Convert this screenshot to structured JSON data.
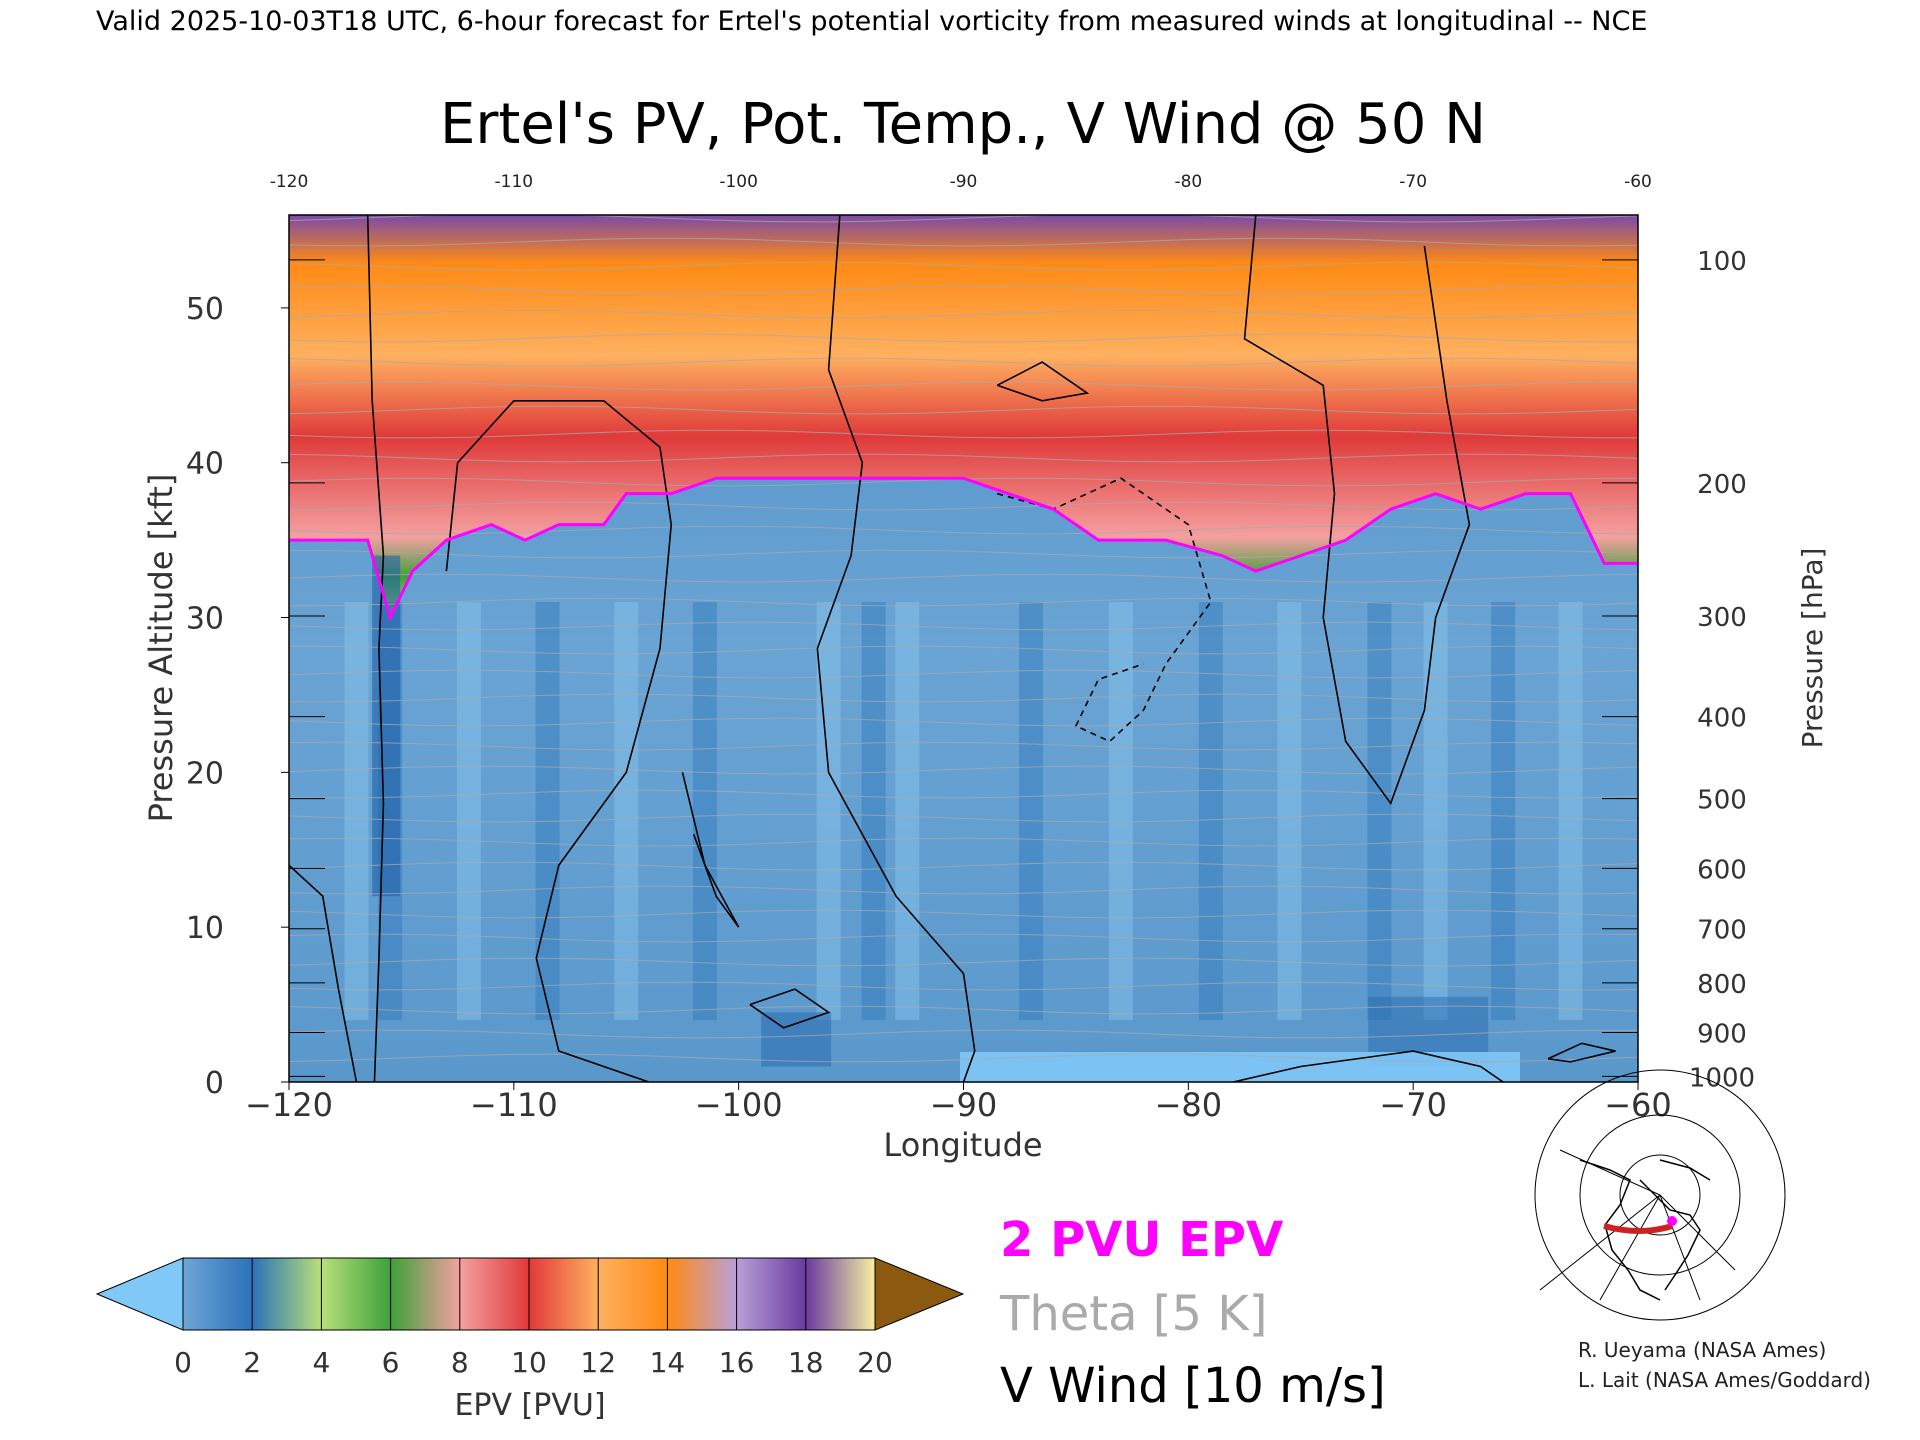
{
  "header": {
    "valid_line": "Valid 2025-10-03T18 UTC, 6-hour forecast for Ertel's potential vorticity from measured winds at longitudinal -- NCE"
  },
  "chart_data": {
    "type": "heatmap",
    "title": "Ertel's PV, Pot. Temp., V Wind @ 50 N",
    "xlabel": "Longitude",
    "ylabel_left": "Pressure Altitude [kft]",
    "ylabel_right": "Pressure [hPa]",
    "xlim": [
      -120,
      -60
    ],
    "ylim": [
      0,
      56
    ],
    "x_ticks": [
      -120,
      -110,
      -100,
      -90,
      -80,
      -70,
      -60
    ],
    "x_tick_labels": [
      "−120",
      "−110",
      "−100",
      "−90",
      "−80",
      "−70",
      "−60"
    ],
    "top_ticks": [
      -120,
      -110,
      -100,
      -90,
      -80,
      -70,
      -60
    ],
    "top_tick_labels": [
      "-120",
      "-110",
      "-100",
      "-90",
      "-80",
      "-70",
      "-60"
    ],
    "y_ticks": [
      0,
      10,
      20,
      30,
      40,
      50
    ],
    "pressure_ticks": [
      {
        "hpa": 100,
        "kft": 53.1
      },
      {
        "hpa": 200,
        "kft": 38.7
      },
      {
        "hpa": 300,
        "kft": 30.1
      },
      {
        "hpa": 400,
        "kft": 23.6
      },
      {
        "hpa": 500,
        "kft": 18.3
      },
      {
        "hpa": 600,
        "kft": 13.8
      },
      {
        "hpa": 700,
        "kft": 9.9
      },
      {
        "hpa": 800,
        "kft": 6.4
      },
      {
        "hpa": 900,
        "kft": 3.2
      },
      {
        "hpa": 1000,
        "kft": 0.36
      }
    ],
    "dynamic_tropopause": {
      "label": "2 PVU EPV",
      "color": "#ff00ff",
      "lon": [
        -120,
        -116.5,
        -115.5,
        -114.5,
        -113,
        -111,
        -109.5,
        -108,
        -106,
        -105,
        -103,
        -101,
        -99,
        -96,
        -93,
        -90,
        -88,
        -86,
        -84,
        -81,
        -78.5,
        -77,
        -75,
        -73,
        -71,
        -69,
        -67,
        -65,
        -63,
        -61.5,
        -60
      ],
      "kft": [
        35,
        35,
        30,
        33,
        35,
        36,
        35,
        36,
        36,
        38,
        38,
        39,
        39,
        39,
        39,
        39,
        38,
        37,
        35,
        35,
        34,
        33,
        34,
        35,
        37,
        38,
        37,
        38,
        38,
        33.5,
        33.5
      ]
    },
    "epv_profile": {
      "description_free": true,
      "lon": [
        -120,
        -110,
        -100,
        -90,
        -80,
        -70,
        -60
      ],
      "trop_kft": [
        35,
        36,
        39,
        39,
        35,
        38,
        33.5
      ]
    },
    "theta": {
      "label": "Theta",
      "units": "[5 K]",
      "color": "#aaaaaa"
    },
    "v_wind": {
      "label": "V Wind",
      "units": "[10 m/s]",
      "color": "#000000"
    },
    "colorbar": {
      "label": "EPV [PVU]",
      "ticks": [
        "0",
        "2",
        "4",
        "6",
        "8",
        "10",
        "12",
        "14",
        "16",
        "18",
        "20"
      ],
      "colors": [
        "#6ea6d6",
        "#2a72b8",
        "#b8e07a",
        "#3ea03a",
        "#f4a0a0",
        "#e03a3a",
        "#ffb060",
        "#ff8a14",
        "#b8a0d8",
        "#6a3aa0",
        "#f6f0a0"
      ],
      "under_color": "#80c8f8",
      "over_color": "#8b5a10"
    }
  },
  "credits": {
    "line1": "R. Ueyama (NASA Ames)",
    "line2": "L. Lait (NASA Ames/Goddard)"
  },
  "inset_map": {
    "track_color": "#cc2222",
    "marker_color": "#ff00ff"
  }
}
